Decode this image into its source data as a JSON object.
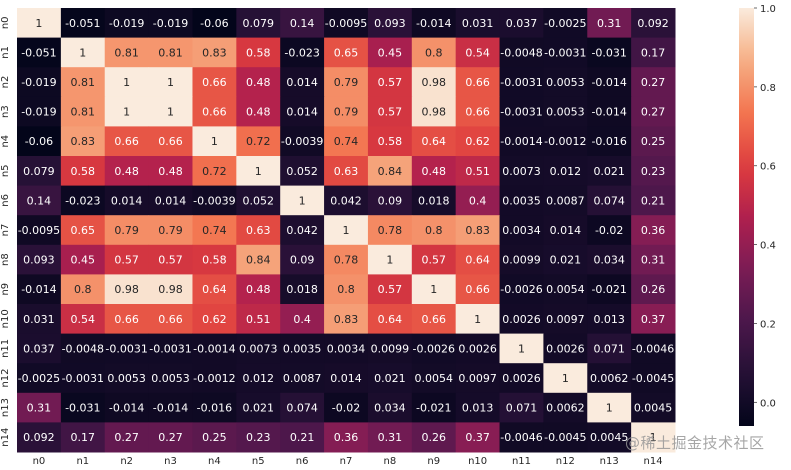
{
  "chart_data": {
    "type": "heatmap",
    "title": "",
    "xlabel": "",
    "ylabel": "",
    "x_labels": [
      "n0",
      "n1",
      "n2",
      "n3",
      "n4",
      "n5",
      "n6",
      "n7",
      "n8",
      "n9",
      "n10",
      "n11",
      "n12",
      "n13",
      "n14"
    ],
    "y_labels": [
      "n0",
      "n1",
      "n2",
      "n3",
      "n4",
      "n5",
      "n6",
      "n7",
      "n8",
      "n9",
      "n10",
      "n11",
      "n12",
      "n13",
      "n14"
    ],
    "matrix": [
      [
        1,
        -0.051,
        -0.019,
        -0.019,
        -0.06,
        0.079,
        0.14,
        -0.0095,
        0.093,
        -0.014,
        0.031,
        0.037,
        -0.0025,
        0.31,
        0.092
      ],
      [
        -0.051,
        1,
        0.81,
        0.81,
        0.83,
        0.58,
        -0.023,
        0.65,
        0.45,
        0.8,
        0.54,
        -0.0048,
        -0.0031,
        -0.031,
        0.17
      ],
      [
        -0.019,
        0.81,
        1,
        1,
        0.66,
        0.48,
        0.014,
        0.79,
        0.57,
        0.98,
        0.66,
        -0.0031,
        0.0053,
        -0.014,
        0.27
      ],
      [
        -0.019,
        0.81,
        1,
        1,
        0.66,
        0.48,
        0.014,
        0.79,
        0.57,
        0.98,
        0.66,
        -0.0031,
        0.0053,
        -0.014,
        0.27
      ],
      [
        -0.06,
        0.83,
        0.66,
        0.66,
        1,
        0.72,
        -0.0039,
        0.74,
        0.58,
        0.64,
        0.62,
        -0.0014,
        -0.0012,
        -0.016,
        0.25
      ],
      [
        0.079,
        0.58,
        0.48,
        0.48,
        0.72,
        1,
        0.052,
        0.63,
        0.84,
        0.48,
        0.51,
        0.0073,
        0.012,
        0.021,
        0.23
      ],
      [
        0.14,
        -0.023,
        0.014,
        0.014,
        -0.0039,
        0.052,
        1,
        0.042,
        0.09,
        0.018,
        0.4,
        0.0035,
        0.0087,
        0.074,
        0.21
      ],
      [
        -0.0095,
        0.65,
        0.79,
        0.79,
        0.74,
        0.63,
        0.042,
        1,
        0.78,
        0.8,
        0.83,
        0.0034,
        0.014,
        -0.02,
        0.36
      ],
      [
        0.093,
        0.45,
        0.57,
        0.57,
        0.58,
        0.84,
        0.09,
        0.78,
        1,
        0.57,
        0.64,
        0.0099,
        0.021,
        0.034,
        0.31
      ],
      [
        -0.014,
        0.8,
        0.98,
        0.98,
        0.64,
        0.48,
        0.018,
        0.8,
        0.57,
        1,
        0.66,
        -0.0026,
        0.0054,
        -0.021,
        0.26
      ],
      [
        0.031,
        0.54,
        0.66,
        0.66,
        0.62,
        0.51,
        0.4,
        0.83,
        0.64,
        0.66,
        1,
        0.0026,
        0.0097,
        0.013,
        0.37
      ],
      [
        0.037,
        -0.0048,
        -0.0031,
        -0.0031,
        -0.0014,
        0.0073,
        0.0035,
        0.0034,
        0.0099,
        -0.0026,
        0.0026,
        1,
        0.0026,
        0.071,
        -0.0046
      ],
      [
        -0.0025,
        -0.0031,
        0.0053,
        0.0053,
        -0.0012,
        0.012,
        0.0087,
        0.014,
        0.021,
        0.0054,
        0.0097,
        0.0026,
        1,
        0.0062,
        -0.0045
      ],
      [
        0.31,
        -0.031,
        -0.014,
        -0.014,
        -0.016,
        0.021,
        0.074,
        -0.02,
        0.034,
        -0.021,
        0.013,
        0.071,
        0.0062,
        1,
        0.0045
      ],
      [
        0.092,
        0.17,
        0.27,
        0.27,
        0.25,
        0.23,
        0.21,
        0.36,
        0.31,
        0.26,
        0.37,
        -0.0046,
        -0.0045,
        0.0045,
        1
      ]
    ],
    "colorbar": {
      "vmin": -0.06,
      "vmax": 1.0,
      "ticks": [
        "0.0",
        "0.2",
        "0.4",
        "0.6",
        "0.8",
        "1.0"
      ],
      "tick_values": [
        0.0,
        0.2,
        0.4,
        0.6,
        0.8,
        1.0
      ],
      "colormap": "rocket"
    },
    "grid": false,
    "legend": "none"
  },
  "watermark": "@稀土掘金技术社区"
}
